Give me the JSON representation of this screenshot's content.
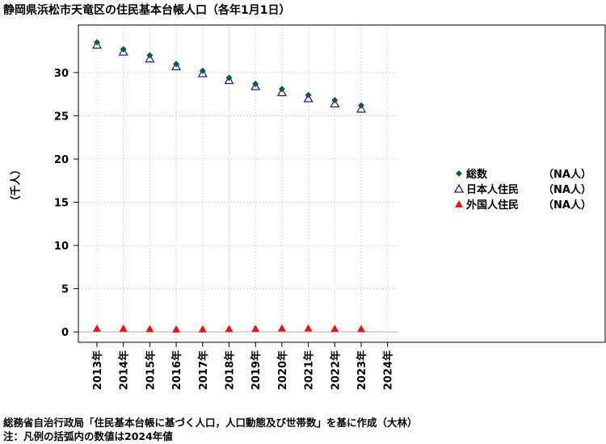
{
  "title": "静岡県浜松市天竜区の住民基本台帳人口（各年1月1日）",
  "notes": {
    "source": "総務省自治行政局「住民基本台帳に基づく人口，人口動態及び世帯数」を基に作成（大林）",
    "caption": "注：凡例の括弧内の数値は2024年値"
  },
  "legend": {
    "items": [
      {
        "label": "総数",
        "note": "（NA人）",
        "symbol": "filled-diamond",
        "color": "#0b5a3a"
      },
      {
        "label": "日本人住民",
        "note": "（NA人）",
        "symbol": "open-triangle",
        "color": "#1a1aa8"
      },
      {
        "label": "外国人住民",
        "note": "（NA人）",
        "symbol": "filled-triangle",
        "color": "#ee1111"
      }
    ]
  },
  "chart_data": {
    "type": "scatter",
    "title": "静岡県浜松市天竜区の住民基本台帳人口（各年1月1日）",
    "ylabel": "（千人）",
    "xlabel": "",
    "categories": [
      "2013年",
      "2014年",
      "2015年",
      "2016年",
      "2017年",
      "2018年",
      "2019年",
      "2020年",
      "2021年",
      "2022年",
      "2023年",
      "2024年"
    ],
    "ylim": [
      -1.2,
      35.5
    ],
    "yticks": [
      0,
      5,
      10,
      15,
      20,
      25,
      30
    ],
    "grid": true,
    "legend_position": "right",
    "series": [
      {
        "name": "総数",
        "marker": "filled-diamond",
        "color": "#0b5a3a",
        "values": [
          33.5,
          32.7,
          32.0,
          31.0,
          30.2,
          29.4,
          28.7,
          28.1,
          27.4,
          26.8,
          26.2,
          null
        ]
      },
      {
        "name": "日本人住民",
        "marker": "open-triangle",
        "color": "#1a1aa8",
        "values": [
          33.2,
          32.4,
          31.6,
          30.7,
          29.9,
          29.1,
          28.4,
          27.7,
          27.0,
          26.4,
          25.8,
          null
        ]
      },
      {
        "name": "外国人住民",
        "marker": "filled-triangle",
        "color": "#ee1111",
        "values": [
          0.4,
          0.4,
          0.35,
          0.3,
          0.32,
          0.35,
          0.38,
          0.42,
          0.42,
          0.38,
          0.35,
          null
        ]
      }
    ]
  }
}
